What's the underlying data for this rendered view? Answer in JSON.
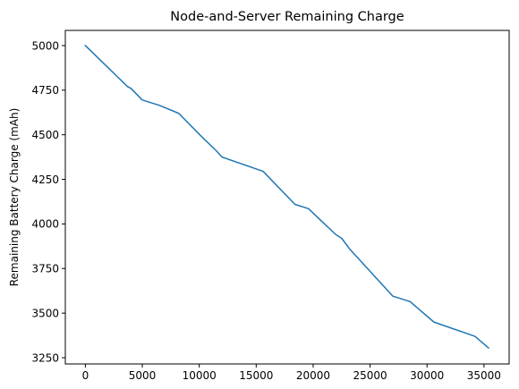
{
  "chart_data": {
    "type": "line",
    "title": "Node-and-Server Remaining Charge",
    "xlabel": "",
    "ylabel": "Remaining Battery Charge (mAh)",
    "xlim": [
      -1760,
      37210
    ],
    "ylim": [
      3215,
      5085
    ],
    "x_ticks": [
      0,
      5000,
      10000,
      15000,
      20000,
      25000,
      30000,
      35000
    ],
    "y_ticks": [
      3250,
      3500,
      3750,
      4000,
      4250,
      4500,
      4750,
      5000
    ],
    "grid": false,
    "legend": "none",
    "series": [
      {
        "color": "#1f77b4",
        "points": [
          [
            0,
            5000
          ],
          [
            3700,
            4770
          ],
          [
            4000,
            4760
          ],
          [
            5000,
            4695
          ],
          [
            6500,
            4665
          ],
          [
            8200,
            4620
          ],
          [
            10200,
            4490
          ],
          [
            11500,
            4410
          ],
          [
            12000,
            4375
          ],
          [
            15600,
            4295
          ],
          [
            18400,
            4110
          ],
          [
            19600,
            4085
          ],
          [
            21000,
            4000
          ],
          [
            22000,
            3940
          ],
          [
            22500,
            3920
          ],
          [
            23200,
            3860
          ],
          [
            27000,
            3595
          ],
          [
            28500,
            3565
          ],
          [
            30600,
            3450
          ],
          [
            34200,
            3370
          ],
          [
            35400,
            3305
          ]
        ]
      }
    ]
  }
}
